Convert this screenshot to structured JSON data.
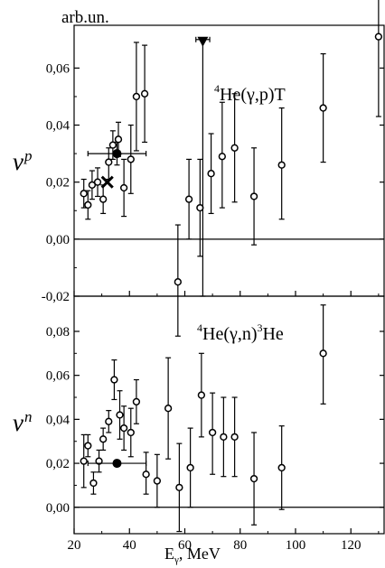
{
  "figure": {
    "unit_label": "arb.un.",
    "x_label": "E",
    "x_label_sub": "γ",
    "x_label_unit": ", MeV",
    "x_ticks": [
      "20",
      "40",
      "60",
      "80",
      "100",
      "120"
    ]
  },
  "chart_data": [
    {
      "type": "scatter",
      "panel": "top",
      "ylabel": "ν",
      "ylabel_sub": "p",
      "reaction": {
        "sup": "4",
        "main": "He(γ,p)T"
      },
      "xlim": [
        20,
        132
      ],
      "ylim": [
        -0.02,
        0.075
      ],
      "y_ticks": [
        "-0,02",
        "0,00",
        "0,02",
        "0,04",
        "0,06"
      ],
      "hline_y": 0,
      "series": [
        {
          "marker": "open-circle",
          "points": [
            {
              "x": 23.5,
              "y": 0.016,
              "lo": 0.011,
              "hi": 0.021
            },
            {
              "x": 25,
              "y": 0.012,
              "lo": 0.007,
              "hi": 0.017
            },
            {
              "x": 26.5,
              "y": 0.019,
              "lo": 0.014,
              "hi": 0.024
            },
            {
              "x": 28.5,
              "y": 0.02,
              "lo": 0.015,
              "hi": 0.025
            },
            {
              "x": 30.5,
              "y": 0.014,
              "lo": 0.009,
              "hi": 0.019
            },
            {
              "x": 32.5,
              "y": 0.027,
              "lo": 0.021,
              "hi": 0.032
            },
            {
              "x": 34,
              "y": 0.033,
              "lo": 0.028,
              "hi": 0.038
            },
            {
              "x": 36,
              "y": 0.035,
              "lo": 0.029,
              "hi": 0.041
            },
            {
              "x": 38,
              "y": 0.018,
              "lo": 0.008,
              "hi": 0.028
            },
            {
              "x": 40.5,
              "y": 0.028,
              "lo": 0.016,
              "hi": 0.04
            },
            {
              "x": 42.5,
              "y": 0.05,
              "lo": 0.031,
              "hi": 0.069
            },
            {
              "x": 45.5,
              "y": 0.051,
              "lo": 0.034,
              "hi": 0.068
            },
            {
              "x": 57.5,
              "y": -0.015,
              "lo": -0.034,
              "hi": 0.005
            },
            {
              "x": 61.5,
              "y": 0.014,
              "lo": 0.0,
              "hi": 0.028
            },
            {
              "x": 65.5,
              "y": 0.011,
              "lo": -0.006,
              "hi": 0.028
            },
            {
              "x": 69.5,
              "y": 0.023,
              "lo": 0.009,
              "hi": 0.037
            },
            {
              "x": 73.5,
              "y": 0.029,
              "lo": 0.011,
              "hi": 0.048
            },
            {
              "x": 78,
              "y": 0.032,
              "lo": 0.013,
              "hi": 0.051
            },
            {
              "x": 85,
              "y": 0.015,
              "lo": -0.002,
              "hi": 0.032
            },
            {
              "x": 95,
              "y": 0.026,
              "lo": 0.007,
              "hi": 0.046
            },
            {
              "x": 110,
              "y": 0.046,
              "lo": 0.027,
              "hi": 0.065
            },
            {
              "x": 130,
              "y": 0.071,
              "lo": 0.043,
              "hi": 0.1
            }
          ]
        },
        {
          "marker": "filled-circle",
          "points": [
            {
              "x": 35.5,
              "y": 0.03,
              "lo": 0.026,
              "hi": 0.034,
              "xlo": 25,
              "xhi": 46
            }
          ]
        },
        {
          "marker": "cross",
          "points": [
            {
              "x": 32,
              "y": 0.02
            }
          ]
        },
        {
          "marker": "filled-triangle-down",
          "points": [
            {
              "x": 66.5,
              "y": 0.07,
              "lo": -0.02,
              "hi": 0.07,
              "xlo": 64,
              "xhi": 69
            }
          ]
        }
      ]
    },
    {
      "type": "scatter",
      "panel": "bottom",
      "ylabel": "ν",
      "ylabel_sub": "n",
      "reaction": {
        "sup": "4",
        "main": "He(γ,n)",
        "sup2": "3",
        "tail": "He"
      },
      "xlim": [
        20,
        132
      ],
      "ylim": [
        -0.012,
        0.096
      ],
      "y_ticks": [
        "0,00",
        "0,02",
        "0,04",
        "0,06",
        "0,08"
      ],
      "hline_y": 0,
      "series": [
        {
          "marker": "open-circle",
          "points": [
            {
              "x": 23.5,
              "y": 0.021,
              "lo": 0.009,
              "hi": 0.033
            },
            {
              "x": 25,
              "y": 0.028,
              "lo": 0.023,
              "hi": 0.033
            },
            {
              "x": 27,
              "y": 0.011,
              "lo": 0.006,
              "hi": 0.016
            },
            {
              "x": 29,
              "y": 0.021,
              "lo": 0.016,
              "hi": 0.026
            },
            {
              "x": 30.5,
              "y": 0.031,
              "lo": 0.026,
              "hi": 0.036
            },
            {
              "x": 32.5,
              "y": 0.039,
              "lo": 0.034,
              "hi": 0.044
            },
            {
              "x": 34.5,
              "y": 0.058,
              "lo": 0.049,
              "hi": 0.067
            },
            {
              "x": 36.5,
              "y": 0.042,
              "lo": 0.031,
              "hi": 0.053
            },
            {
              "x": 38,
              "y": 0.036,
              "lo": 0.026,
              "hi": 0.046
            },
            {
              "x": 40.5,
              "y": 0.034,
              "lo": 0.023,
              "hi": 0.045
            },
            {
              "x": 42.5,
              "y": 0.048,
              "lo": 0.038,
              "hi": 0.058
            },
            {
              "x": 46,
              "y": 0.015,
              "lo": 0.006,
              "hi": 0.025
            },
            {
              "x": 50,
              "y": 0.012,
              "lo": 0.0,
              "hi": 0.024
            },
            {
              "x": 54,
              "y": 0.045,
              "lo": 0.022,
              "hi": 0.068
            },
            {
              "x": 58,
              "y": 0.009,
              "lo": -0.011,
              "hi": 0.029
            },
            {
              "x": 62,
              "y": 0.018,
              "lo": 0.0,
              "hi": 0.036
            },
            {
              "x": 66,
              "y": 0.051,
              "lo": 0.032,
              "hi": 0.07
            },
            {
              "x": 70,
              "y": 0.034,
              "lo": 0.015,
              "hi": 0.052
            },
            {
              "x": 74,
              "y": 0.032,
              "lo": 0.014,
              "hi": 0.05
            },
            {
              "x": 78,
              "y": 0.032,
              "lo": 0.014,
              "hi": 0.05
            },
            {
              "x": 85,
              "y": 0.013,
              "lo": -0.008,
              "hi": 0.034
            },
            {
              "x": 95,
              "y": 0.018,
              "lo": -0.001,
              "hi": 0.037
            },
            {
              "x": 110,
              "y": 0.07,
              "lo": 0.047,
              "hi": 0.092
            }
          ]
        },
        {
          "marker": "filled-circle",
          "points": [
            {
              "x": 35.5,
              "y": 0.02,
              "xlo": 25,
              "xhi": 46
            }
          ]
        }
      ]
    }
  ]
}
